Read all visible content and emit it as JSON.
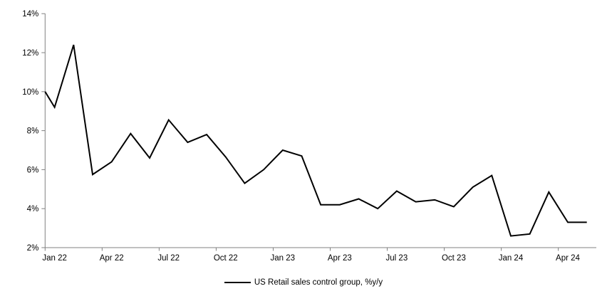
{
  "chart_data": {
    "type": "line",
    "title": "",
    "x": [
      "Jan 22",
      "Feb 22",
      "Mar 22",
      "Apr 22",
      "May 22",
      "Jun 22",
      "Jul 22",
      "Aug 22",
      "Sep 22",
      "Oct 22",
      "Nov 22",
      "Dec 22",
      "Jan 23",
      "Feb 23",
      "Mar 23",
      "Apr 23",
      "May 23",
      "Jun 23",
      "Jul 23",
      "Aug 23",
      "Sep 23",
      "Oct 23",
      "Nov 23",
      "Dec 23",
      "Jan 24",
      "Feb 24",
      "Mar 24",
      "Apr 24",
      "May 24"
    ],
    "series": [
      {
        "name": "US Retail sales control group, %y/y",
        "color": "#000000",
        "line_width": 2,
        "edge_start_value": 10.0,
        "values": [
          9.2,
          12.4,
          5.75,
          6.4,
          7.85,
          6.6,
          8.55,
          7.4,
          7.8,
          6.65,
          5.3,
          6.0,
          7.0,
          6.7,
          4.2,
          4.2,
          4.5,
          4.0,
          4.9,
          4.35,
          4.45,
          4.1,
          5.1,
          5.7,
          2.6,
          2.7,
          4.85,
          3.3,
          3.3
        ]
      }
    ],
    "x_axis": {
      "tick_labels": [
        "Jan 22",
        "Apr 22",
        "Jul 22",
        "Oct 22",
        "Jan 23",
        "Apr 23",
        "Jul 23",
        "Oct 23",
        "Jan 24",
        "Apr 24"
      ],
      "label_every_n_months": 3,
      "ticks_at_boundaries": true
    },
    "y_axis": {
      "min": 2,
      "max": 14,
      "step": 2,
      "tick_labels": [
        "2%",
        "4%",
        "6%",
        "8%",
        "10%",
        "12%",
        "14%"
      ]
    },
    "grid": "off",
    "legend": {
      "position": "bottom",
      "entries": [
        "US Retail sales control group, %y/y"
      ]
    },
    "colors": {
      "series": "#000000",
      "axis": "#808080",
      "text": "#000000",
      "background": "#ffffff"
    }
  }
}
